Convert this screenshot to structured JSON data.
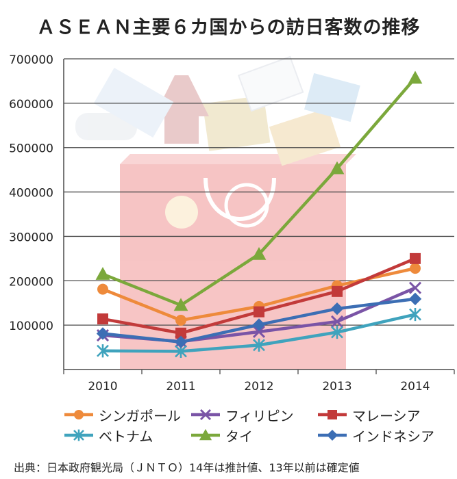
{
  "title": "ＡＳＥＡＮ主要６カ国からの訪日客数の推移",
  "source": "出典：日本政府観光局（ＪＮＴＯ）14年は推計値、13年以前は確定値",
  "chart_data": {
    "type": "line",
    "title": "ＡＳＥＡＮ主要６カ国からの訪日客数の推移",
    "xlabel": "",
    "ylabel": "",
    "x": [
      "2010",
      "2011",
      "2012",
      "2013",
      "2014"
    ],
    "ylim": [
      0,
      700000
    ],
    "yticks": [
      "0",
      "100000",
      "200000",
      "300000",
      "400000",
      "500000",
      "600000",
      "700000"
    ],
    "grid": true,
    "legend_position": "bottom",
    "series": [
      {
        "name": "シンガポール",
        "color": "#ee8a3b",
        "marker": "circle",
        "values": [
          181000,
          111000,
          142000,
          189000,
          228000
        ]
      },
      {
        "name": "フィリピン",
        "color": "#7a54a6",
        "marker": "x",
        "values": [
          77000,
          63000,
          85000,
          108000,
          184000
        ]
      },
      {
        "name": "マレーシア",
        "color": "#c23a3a",
        "marker": "square",
        "values": [
          114000,
          82000,
          130000,
          176000,
          250000
        ]
      },
      {
        "name": "ベトナム",
        "color": "#3fa3bd",
        "marker": "asterisk",
        "values": [
          42000,
          41000,
          55000,
          84000,
          124000
        ]
      },
      {
        "name": "タイ",
        "color": "#7ba83b",
        "marker": "triangle",
        "values": [
          215000,
          145000,
          260000,
          453000,
          657000
        ]
      },
      {
        "name": "インドネシア",
        "color": "#3c6eb4",
        "marker": "diamond",
        "values": [
          81000,
          62000,
          101000,
          137000,
          159000
        ]
      }
    ]
  }
}
